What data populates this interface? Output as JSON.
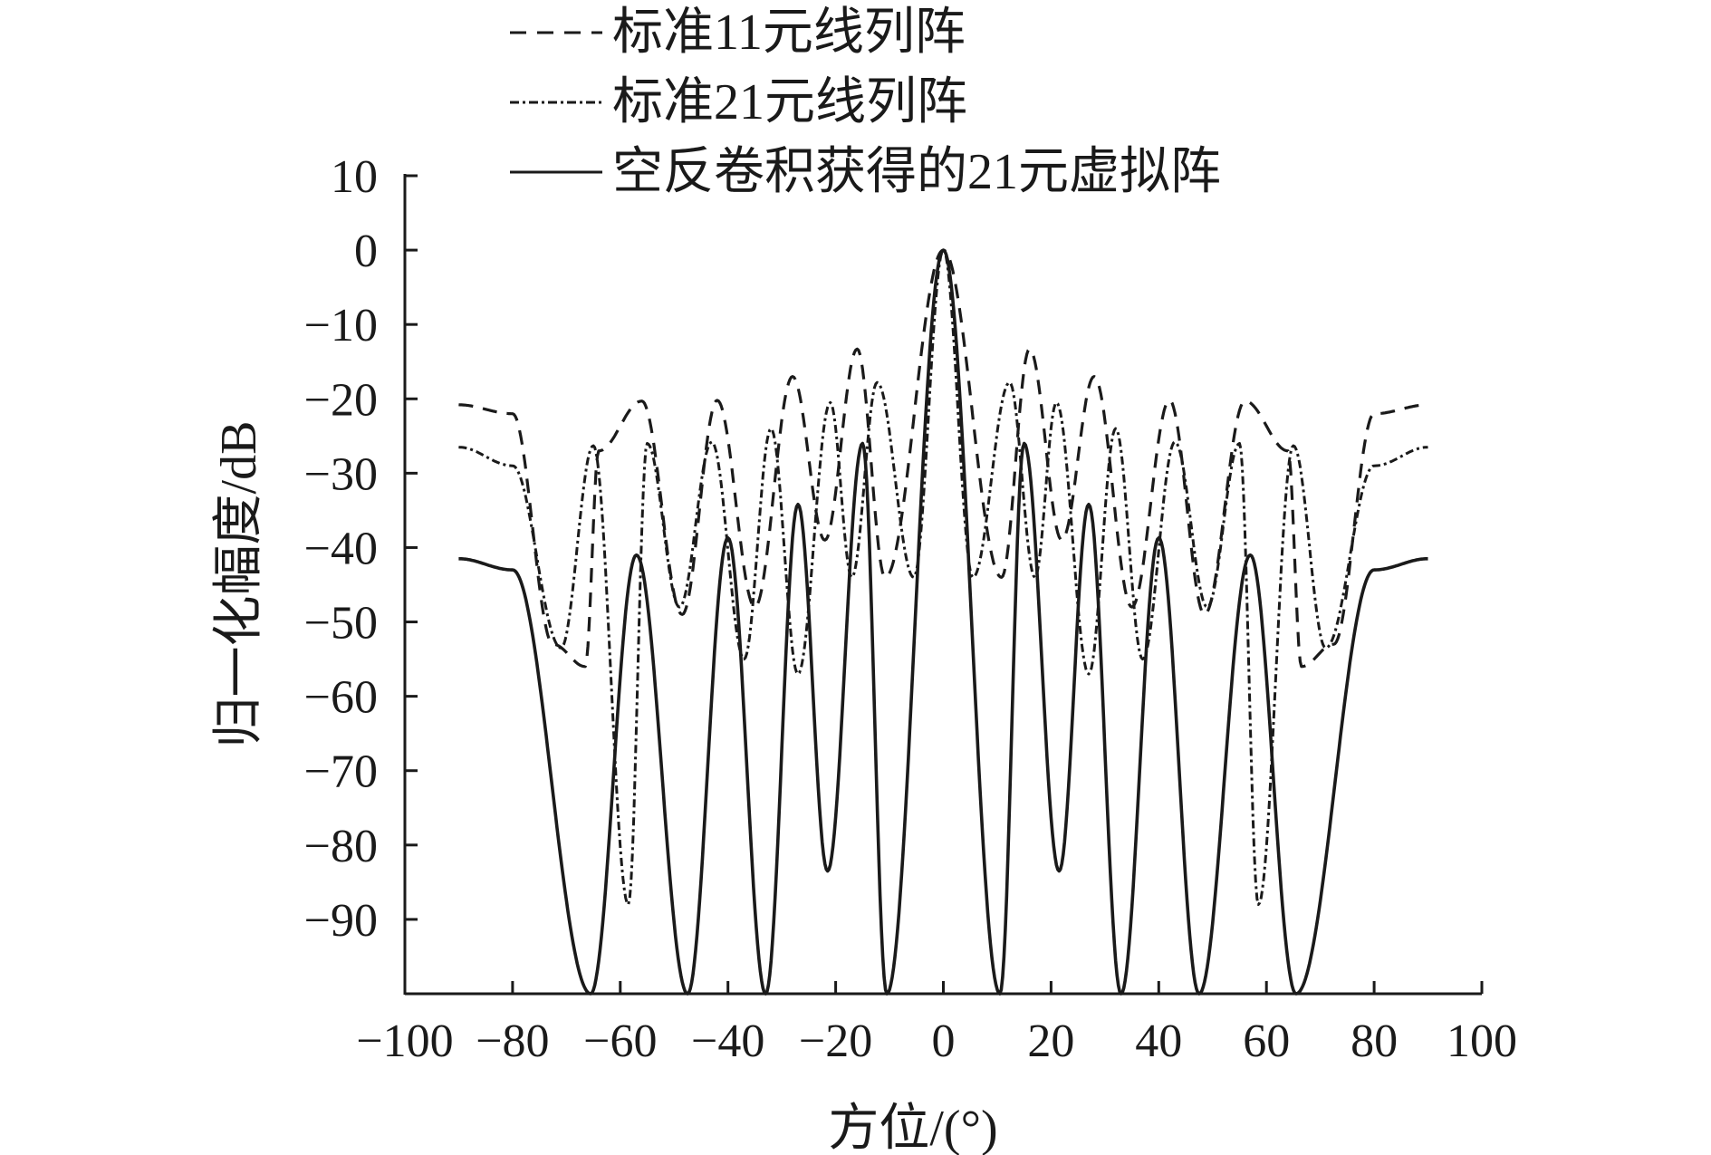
{
  "chart_data": {
    "type": "line",
    "xlabel": "方位/(°)",
    "ylabel": "归一化幅度/dB",
    "xlim": [
      -100,
      100
    ],
    "ylim": [
      -100,
      10
    ],
    "x_ticks": [
      -100,
      -80,
      -60,
      -40,
      -20,
      0,
      20,
      40,
      60,
      80,
      100
    ],
    "y_ticks": [
      10,
      0,
      -10,
      -20,
      -30,
      -40,
      -50,
      -60,
      -70,
      -80,
      -90
    ],
    "x_tick_labels": [
      "−100",
      "−80",
      "−60",
      "−40",
      "−20",
      "0",
      "20",
      "40",
      "60",
      "80",
      "100"
    ],
    "y_tick_labels": [
      "10",
      "0",
      "−10",
      "−20",
      "−30",
      "−40",
      "−50",
      "−60",
      "−70",
      "−80",
      "−90"
    ],
    "grid": false,
    "legend_position": "top",
    "x_range": [
      -90,
      90
    ],
    "series": [
      {
        "name": "标准11元线列阵",
        "style": "dashed",
        "color": "#1a1a1a",
        "points": [
          [
            -90,
            -20.8
          ],
          [
            -80,
            -22
          ],
          [
            -72.5,
            -53
          ],
          [
            -66.5,
            -56
          ],
          [
            -64,
            -27
          ],
          [
            -56,
            -20.3
          ],
          [
            -48.5,
            -49
          ],
          [
            -42,
            -20.2
          ],
          [
            -35,
            -48
          ],
          [
            -28,
            -17
          ],
          [
            -22,
            -39
          ],
          [
            -16,
            -13.3
          ],
          [
            -10.8,
            -44
          ],
          [
            0,
            0
          ],
          [
            10.8,
            -44
          ],
          [
            16,
            -13.3
          ],
          [
            22,
            -39
          ],
          [
            28,
            -17
          ],
          [
            35,
            -48
          ],
          [
            42,
            -20.2
          ],
          [
            48.5,
            -49
          ],
          [
            56,
            -20.3
          ],
          [
            64,
            -27
          ],
          [
            66.5,
            -56
          ],
          [
            72.5,
            -53
          ],
          [
            80,
            -22
          ],
          [
            90,
            -20.8
          ]
        ]
      },
      {
        "name": "标准21元线列阵",
        "style": "dash-dot",
        "color": "#1a1a1a",
        "points": [
          [
            -90,
            -26.5
          ],
          [
            -80,
            -29
          ],
          [
            -71,
            -53.5
          ],
          [
            -65,
            -26.3
          ],
          [
            -58.5,
            -88
          ],
          [
            -55,
            -26
          ],
          [
            -49,
            -48
          ],
          [
            -43,
            -25.8
          ],
          [
            -37,
            -55
          ],
          [
            -32,
            -24
          ],
          [
            -27,
            -57
          ],
          [
            -21,
            -20.5
          ],
          [
            -17,
            -44
          ],
          [
            -12.3,
            -17.8
          ],
          [
            -5.5,
            -44
          ],
          [
            0,
            0
          ],
          [
            5.5,
            -44
          ],
          [
            12.3,
            -17.8
          ],
          [
            17,
            -44
          ],
          [
            21,
            -20.5
          ],
          [
            27,
            -57
          ],
          [
            32,
            -24
          ],
          [
            37,
            -55
          ],
          [
            43,
            -25.8
          ],
          [
            49,
            -48
          ],
          [
            55,
            -26
          ],
          [
            58.5,
            -88
          ],
          [
            65,
            -26.3
          ],
          [
            71,
            -53.5
          ],
          [
            80,
            -29
          ],
          [
            90,
            -26.5
          ]
        ]
      },
      {
        "name": "空反卷积获得的21元虚拟阵",
        "style": "solid",
        "color": "#1a1a1a",
        "points": [
          [
            -90,
            -41.5
          ],
          [
            -80,
            -43
          ],
          [
            -65.5,
            -100
          ],
          [
            -57,
            -41
          ],
          [
            -47.5,
            -100
          ],
          [
            -40,
            -38.7
          ],
          [
            -33,
            -100
          ],
          [
            -27,
            -34.2
          ],
          [
            -21.5,
            -83.5
          ],
          [
            -15,
            -26
          ],
          [
            -10.5,
            -100
          ],
          [
            0,
            0
          ],
          [
            10.5,
            -100
          ],
          [
            15,
            -26
          ],
          [
            21.5,
            -83.5
          ],
          [
            27,
            -34.2
          ],
          [
            33,
            -100
          ],
          [
            40,
            -38.7
          ],
          [
            47.5,
            -100
          ],
          [
            57,
            -41
          ],
          [
            65.5,
            -100
          ],
          [
            80,
            -43
          ],
          [
            90,
            -41.5
          ]
        ]
      }
    ]
  }
}
